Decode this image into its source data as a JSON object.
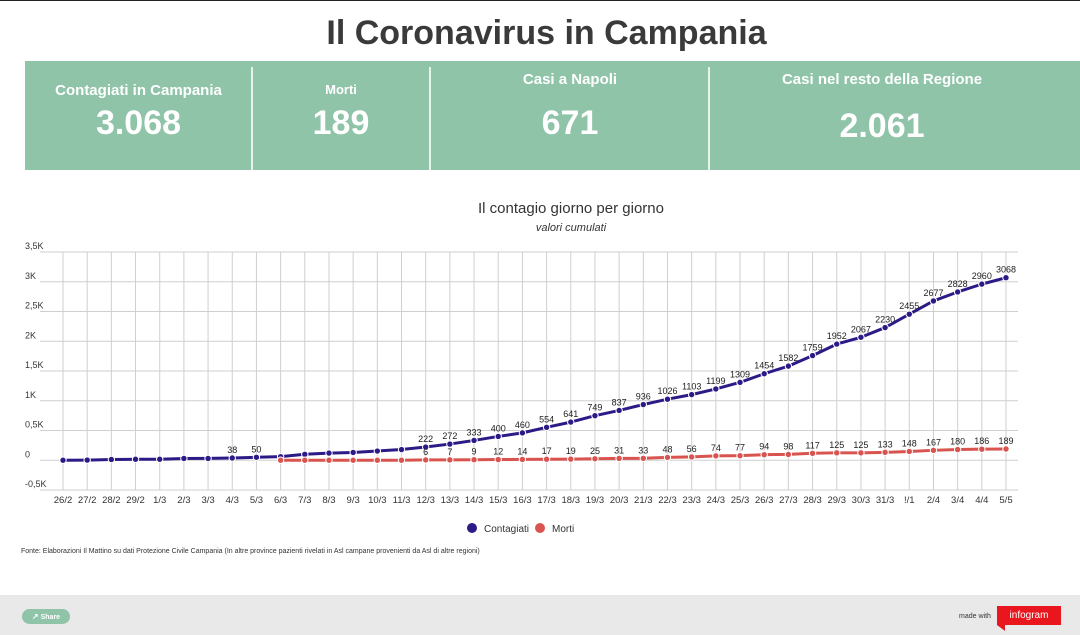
{
  "title": "Il Coronavirus in Campania",
  "stats": [
    {
      "label": "Contagiati in Campania",
      "value": "3.068"
    },
    {
      "label": "Morti",
      "value": "189"
    },
    {
      "label": "Casi a Napoli",
      "value": "671"
    },
    {
      "label": "Casi nel resto della Regione",
      "value": "2.061"
    }
  ],
  "colors": {
    "banner": "#8fc4a9",
    "contagiati": "#2e1a87",
    "morti": "#d9534f",
    "grid": "#cfcfcf",
    "logo": "#e9161d"
  },
  "source_note": "Fonte: Elaborazioni Il Mattino su dati Protezione Civile Campania (In altre province pazienti rivelati in Asl campane provenienti da Asl di altre regioni)",
  "footer": {
    "share_label": "Share",
    "share_icon": "share-icon",
    "made_with": "made with",
    "logo": "infogram"
  },
  "chart_data": {
    "type": "line",
    "title": "Il contagio giorno per giorno",
    "subtitle": "valori cumulati",
    "categories": [
      "26/2",
      "27/2",
      "28/2",
      "29/2",
      "1/3",
      "2/3",
      "3/3",
      "4/3",
      "5/3",
      "6/3",
      "7/3",
      "8/3",
      "9/3",
      "10/3",
      "11/3",
      "12/3",
      "13/3",
      "14/3",
      "15/3",
      "16/3",
      "17/3",
      "18/3",
      "19/3",
      "20/3",
      "21/3",
      "22/3",
      "23/3",
      "24/3",
      "25/3",
      "26/3",
      "27/3",
      "28/3",
      "29/3",
      "30/3",
      "31/3",
      "!/1",
      "2/4",
      "3/4",
      "4/4",
      "5/5"
    ],
    "yticks": [
      "3,5K",
      "3K",
      "2,5K",
      "2K",
      "1,5K",
      "1K",
      "0,5K",
      "0",
      "-0,5K"
    ],
    "ylim": [
      -500,
      3500
    ],
    "legend_position": "bottom",
    "grid": true,
    "series": [
      {
        "name": "Contagiati",
        "values": [
          0,
          3,
          13,
          17,
          17,
          30,
          31,
          38,
          50,
          60,
          100,
          120,
          131,
          155,
          180,
          222,
          272,
          333,
          400,
          460,
          554,
          641,
          749,
          837,
          936,
          1026,
          1103,
          1199,
          1309,
          1454,
          1582,
          1759,
          1952,
          2067,
          2230,
          2455,
          2677,
          2828,
          2960,
          3068
        ],
        "labels": [
          "",
          "",
          "",
          "",
          "",
          "",
          "",
          "38",
          "50",
          "",
          "",
          "",
          "",
          "",
          "",
          "222",
          "272",
          "333",
          "400",
          "460",
          "554",
          "641",
          "749",
          "837",
          "936",
          "1026",
          "1103",
          "1199",
          "1309",
          "1454",
          "1582",
          "1759",
          "1952",
          "2067",
          "2230",
          "2455",
          "2677",
          "2828",
          "2960",
          "3068"
        ]
      },
      {
        "name": "Morti",
        "values": [
          null,
          null,
          null,
          null,
          null,
          null,
          null,
          null,
          null,
          0,
          0,
          0,
          0,
          0,
          0,
          6,
          7,
          9,
          12,
          14,
          17,
          19,
          25,
          31,
          33,
          48,
          56,
          74,
          77,
          94,
          98,
          117,
          125,
          125,
          133,
          148,
          167,
          180,
          186,
          189
        ],
        "labels": [
          "",
          "",
          "",
          "",
          "",
          "",
          "",
          "",
          "",
          "",
          "",
          "",
          "",
          "",
          "",
          "6",
          "7",
          "9",
          "12",
          "14",
          "17",
          "19",
          "25",
          "31",
          "33",
          "48",
          "56",
          "74",
          "77",
          "94",
          "98",
          "117",
          "125",
          "125",
          "133",
          "148",
          "167",
          "180",
          "186",
          "189"
        ]
      }
    ]
  }
}
